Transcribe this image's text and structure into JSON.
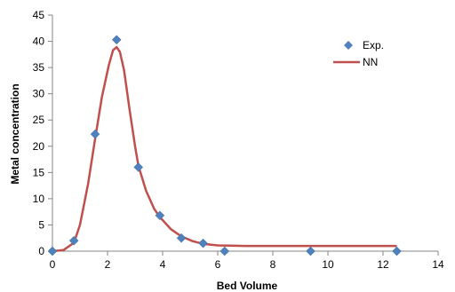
{
  "chart_data": {
    "type": "scatter",
    "xlabel": "Bed Volume",
    "ylabel": "Metal concentration",
    "xlim": [
      0,
      14
    ],
    "ylim": [
      0,
      45
    ],
    "xticks": [
      0,
      2,
      4,
      6,
      8,
      10,
      12,
      14
    ],
    "yticks": [
      0,
      5,
      10,
      15,
      20,
      25,
      30,
      35,
      40,
      45
    ],
    "grid": false,
    "legend_position": "top-right",
    "series": [
      {
        "name": "Exp.",
        "kind": "scatter",
        "color": "#4F81BD",
        "marker": "diamond",
        "points": [
          {
            "x": 0.0,
            "y": 0.0
          },
          {
            "x": 0.78,
            "y": 2.0
          },
          {
            "x": 1.55,
            "y": 22.3
          },
          {
            "x": 2.33,
            "y": 40.3
          },
          {
            "x": 3.12,
            "y": 16.0
          },
          {
            "x": 3.9,
            "y": 6.8
          },
          {
            "x": 4.68,
            "y": 2.5
          },
          {
            "x": 5.47,
            "y": 1.5
          },
          {
            "x": 6.25,
            "y": 0.0
          },
          {
            "x": 9.37,
            "y": 0.0
          },
          {
            "x": 12.5,
            "y": 0.0
          }
        ]
      },
      {
        "name": "NN",
        "kind": "line",
        "color": "#C0504D",
        "points": [
          {
            "x": 0.0,
            "y": 0.0
          },
          {
            "x": 0.4,
            "y": 0.2
          },
          {
            "x": 0.78,
            "y": 1.6
          },
          {
            "x": 1.0,
            "y": 5.0
          },
          {
            "x": 1.3,
            "y": 13.0
          },
          {
            "x": 1.55,
            "y": 21.5
          },
          {
            "x": 1.8,
            "y": 29.5
          },
          {
            "x": 2.05,
            "y": 35.5
          },
          {
            "x": 2.2,
            "y": 38.3
          },
          {
            "x": 2.33,
            "y": 38.9
          },
          {
            "x": 2.45,
            "y": 38.0
          },
          {
            "x": 2.6,
            "y": 34.5
          },
          {
            "x": 2.8,
            "y": 27.0
          },
          {
            "x": 3.0,
            "y": 20.0
          },
          {
            "x": 3.12,
            "y": 16.3
          },
          {
            "x": 3.4,
            "y": 11.5
          },
          {
            "x": 3.7,
            "y": 8.0
          },
          {
            "x": 3.9,
            "y": 6.5
          },
          {
            "x": 4.3,
            "y": 4.2
          },
          {
            "x": 4.68,
            "y": 2.8
          },
          {
            "x": 5.1,
            "y": 1.9
          },
          {
            "x": 5.47,
            "y": 1.4
          },
          {
            "x": 6.0,
            "y": 1.1
          },
          {
            "x": 7.0,
            "y": 1.0
          },
          {
            "x": 9.0,
            "y": 1.0
          },
          {
            "x": 11.0,
            "y": 1.0
          },
          {
            "x": 12.5,
            "y": 1.0
          }
        ]
      }
    ]
  }
}
